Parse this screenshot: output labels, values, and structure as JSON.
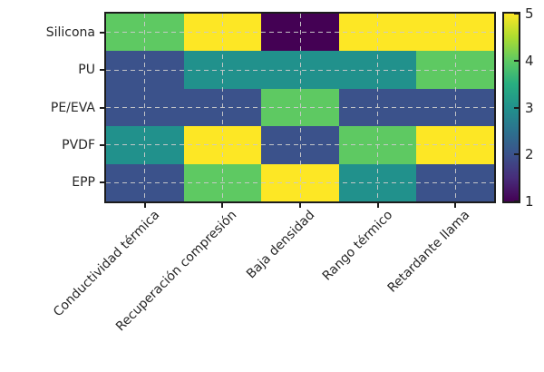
{
  "chart_data": {
    "type": "heatmap",
    "title": "",
    "rows": [
      "Silicona",
      "PU",
      "PE/EVA",
      "PVDF",
      "EPP"
    ],
    "columns": [
      "Conductividad térmica",
      "Recuperación compresión",
      "Baja densidad",
      "Rango térmico",
      "Retardante llama"
    ],
    "values": [
      [
        4,
        5,
        1,
        5,
        5
      ],
      [
        2,
        3,
        3,
        3,
        4
      ],
      [
        2,
        2,
        4,
        2,
        2
      ],
      [
        3,
        5,
        2,
        4,
        5
      ],
      [
        2,
        4,
        5,
        3,
        2
      ]
    ],
    "vmin": 1,
    "vmax": 5,
    "colormap": "viridis",
    "value_colors": {
      "1": "#440154",
      "2": "#3b528b",
      "3": "#21918c",
      "4": "#5ec962",
      "5": "#fde725"
    },
    "colorbar": {
      "position": "right",
      "ticks_top_to_bottom": [
        "5",
        "4",
        "3",
        "2",
        "1"
      ]
    },
    "grid": {
      "style": "dashed",
      "color": "#cacaca",
      "placement": "category-centers"
    },
    "axis_color": "#1c1c1c",
    "background": "#ffffff",
    "x_tick_rotation_deg": 45
  }
}
